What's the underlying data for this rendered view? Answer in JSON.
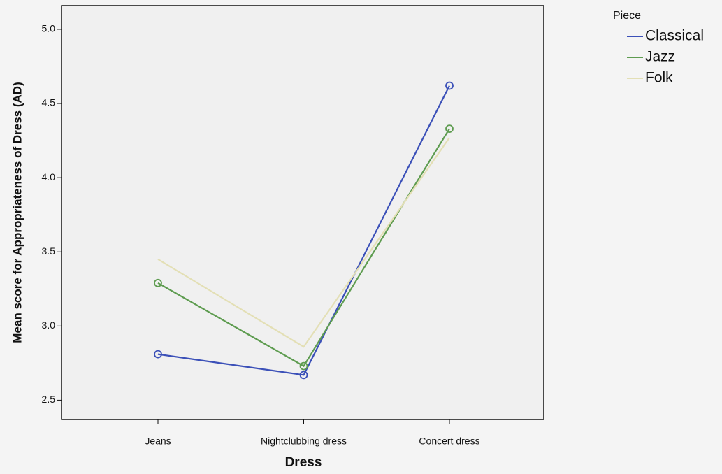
{
  "chart_data": {
    "type": "line",
    "x_label": "Dress",
    "y_label": "Mean score for Appropriateness of Dress (AD)",
    "legend_title": "Piece",
    "categories": [
      "Jeans",
      "Nightclubbing dress",
      "Concert dress"
    ],
    "series": [
      {
        "name": "Classical",
        "color": "#3b50b8",
        "values": [
          2.81,
          2.67,
          4.62
        ],
        "markers": true
      },
      {
        "name": "Jazz",
        "color": "#5e9c50",
        "values": [
          3.29,
          2.73,
          4.33
        ],
        "markers": true
      },
      {
        "name": "Folk",
        "color": "#e3dfb5",
        "values": [
          3.45,
          2.86,
          4.27
        ],
        "markers": false
      }
    ],
    "ylim": [
      2.37,
      5.16
    ],
    "yticks": [
      {
        "value": 2.5,
        "label": "2.5"
      },
      {
        "value": 3,
        "label": "3.0"
      },
      {
        "value": 3.5,
        "label": "3.5"
      },
      {
        "value": 4,
        "label": "4.0"
      },
      {
        "value": 4.5,
        "label": "4.5"
      },
      {
        "value": 5,
        "label": "5.0"
      }
    ]
  }
}
